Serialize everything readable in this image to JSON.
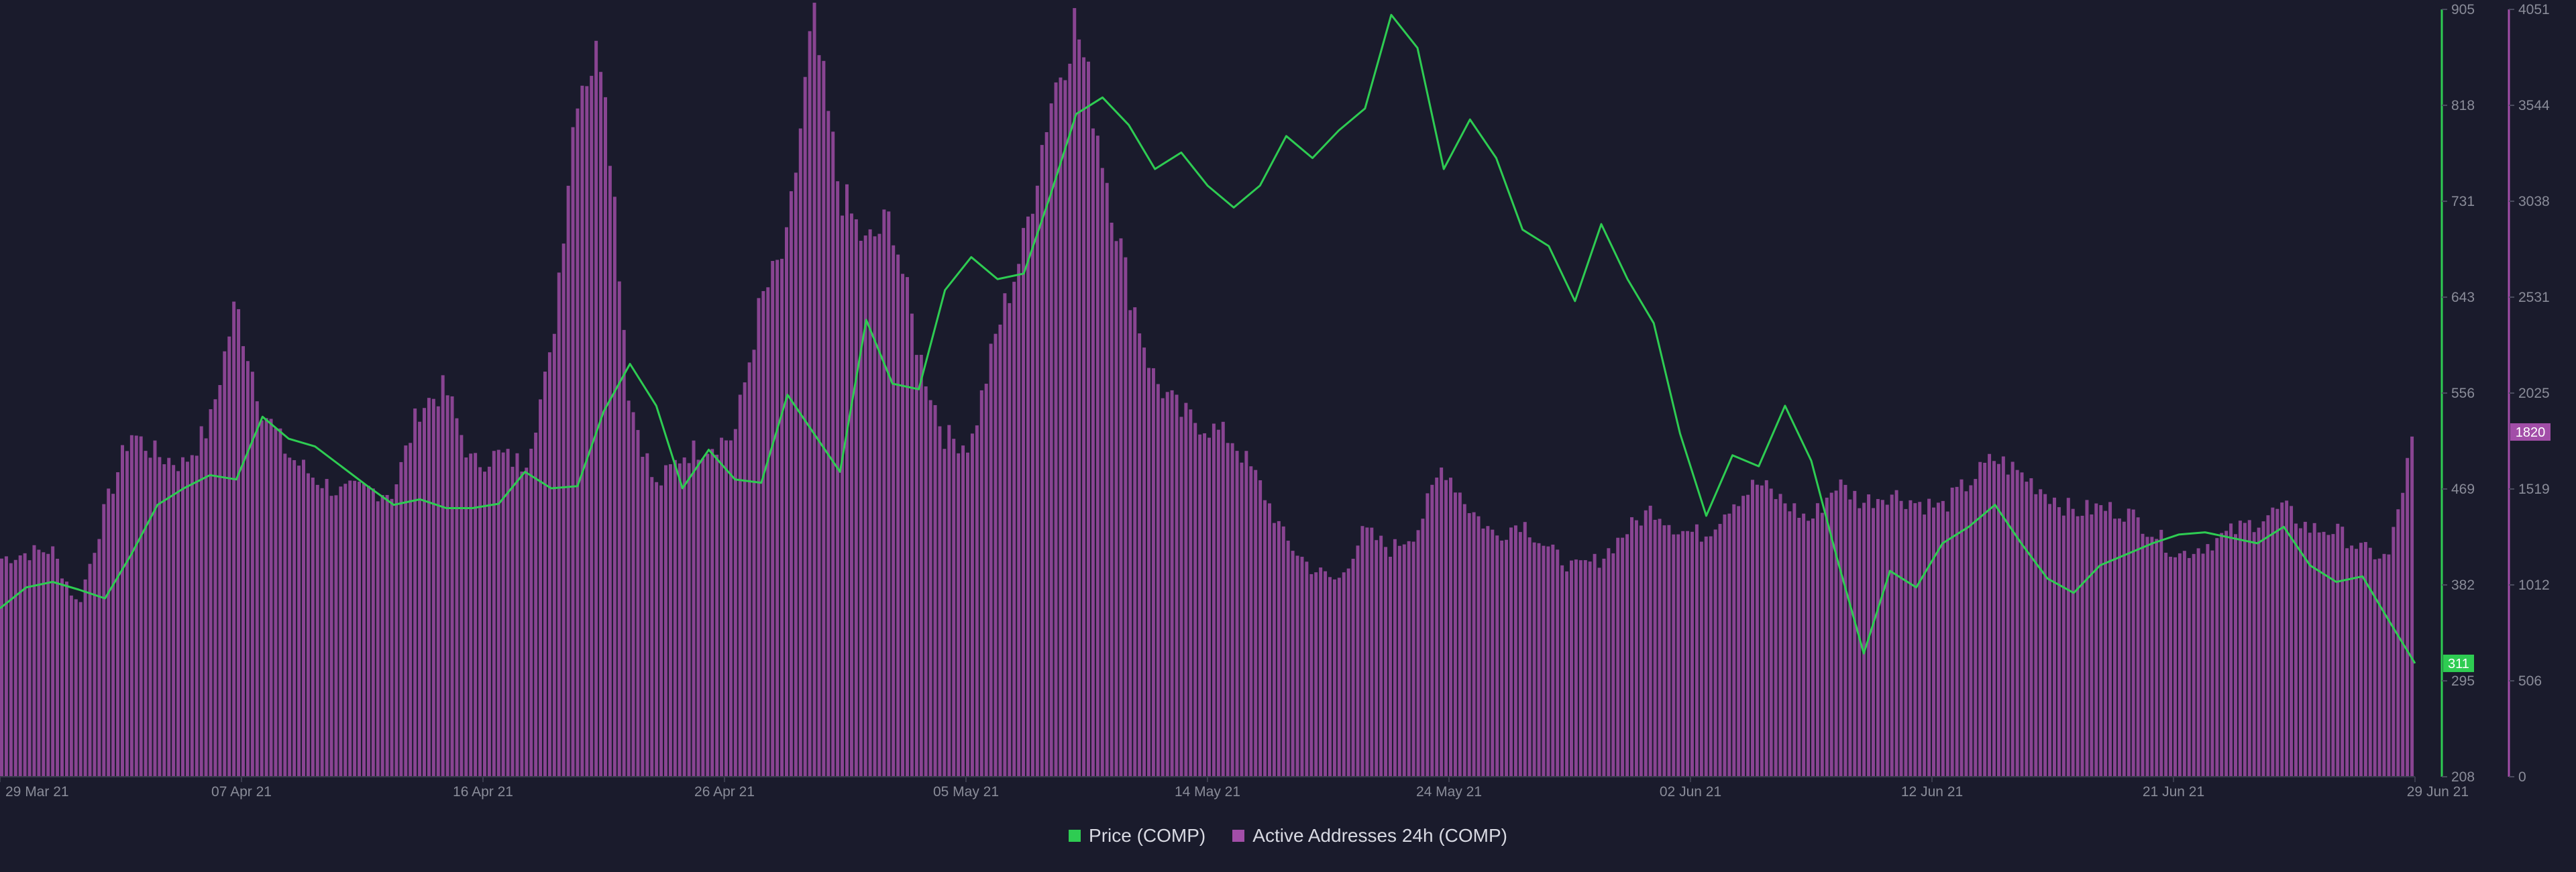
{
  "chart_data": {
    "type": "bar+line",
    "title": "",
    "x_ticks": [
      "29 Mar 21",
      "07 Apr 21",
      "16 Apr 21",
      "26 Apr 21",
      "05 May 21",
      "14 May 21",
      "24 May 21",
      "02 Jun 21",
      "12 Jun 21",
      "21 Jun 21",
      "29 Jun 21"
    ],
    "x_range": [
      "2021-03-29",
      "2021-06-29"
    ],
    "y_price": {
      "ticks": [
        "905",
        "818",
        "731",
        "643",
        "556",
        "469",
        "382",
        "295",
        "208"
      ],
      "range": [
        208,
        905
      ],
      "color": "#2ecc52"
    },
    "y_addresses": {
      "ticks": [
        "4051",
        "3544",
        "3038",
        "2531",
        "2025",
        "1519",
        "1012",
        "506",
        "0"
      ],
      "range": [
        0,
        4051
      ],
      "color": "#a24ea8"
    },
    "last_values": {
      "price": "311",
      "addresses": "1820"
    },
    "series": [
      {
        "name": "Price (COMP)",
        "type": "line",
        "color": "#2ecc52",
        "points": [
          [
            "2021-03-29",
            361
          ],
          [
            "2021-03-30",
            380
          ],
          [
            "2021-03-31",
            385
          ],
          [
            "2021-04-01",
            378
          ],
          [
            "2021-04-02",
            370
          ],
          [
            "2021-04-03",
            410
          ],
          [
            "2021-04-04",
            455
          ],
          [
            "2021-04-05",
            470
          ],
          [
            "2021-04-06",
            482
          ],
          [
            "2021-04-07",
            478
          ],
          [
            "2021-04-08",
            535
          ],
          [
            "2021-04-09",
            515
          ],
          [
            "2021-04-10",
            508
          ],
          [
            "2021-04-11",
            490
          ],
          [
            "2021-04-12",
            472
          ],
          [
            "2021-04-13",
            455
          ],
          [
            "2021-04-14",
            460
          ],
          [
            "2021-04-15",
            452
          ],
          [
            "2021-04-16",
            452
          ],
          [
            "2021-04-17",
            456
          ],
          [
            "2021-04-18",
            485
          ],
          [
            "2021-04-19",
            470
          ],
          [
            "2021-04-20",
            472
          ],
          [
            "2021-04-21",
            540
          ],
          [
            "2021-04-22",
            583
          ],
          [
            "2021-04-23",
            545
          ],
          [
            "2021-04-24",
            470
          ],
          [
            "2021-04-25",
            505
          ],
          [
            "2021-04-26",
            478
          ],
          [
            "2021-04-27",
            475
          ],
          [
            "2021-04-28",
            555
          ],
          [
            "2021-04-29",
            520
          ],
          [
            "2021-04-30",
            485
          ],
          [
            "2021-05-01",
            623
          ],
          [
            "2021-05-02",
            565
          ],
          [
            "2021-05-03",
            560
          ],
          [
            "2021-05-04",
            650
          ],
          [
            "2021-05-05",
            680
          ],
          [
            "2021-05-06",
            660
          ],
          [
            "2021-05-07",
            665
          ],
          [
            "2021-05-08",
            735
          ],
          [
            "2021-05-09",
            810
          ],
          [
            "2021-05-10",
            825
          ],
          [
            "2021-05-11",
            800
          ],
          [
            "2021-05-12",
            760
          ],
          [
            "2021-05-13",
            775
          ],
          [
            "2021-05-14",
            745
          ],
          [
            "2021-05-15",
            725
          ],
          [
            "2021-05-16",
            745
          ],
          [
            "2021-05-17",
            790
          ],
          [
            "2021-05-18",
            770
          ],
          [
            "2021-05-19",
            795
          ],
          [
            "2021-05-20",
            815
          ],
          [
            "2021-05-21",
            900
          ],
          [
            "2021-05-22",
            870
          ],
          [
            "2021-05-23",
            760
          ],
          [
            "2021-05-24",
            805
          ],
          [
            "2021-05-25",
            770
          ],
          [
            "2021-05-26",
            705
          ],
          [
            "2021-05-27",
            690
          ],
          [
            "2021-05-28",
            640
          ],
          [
            "2021-05-29",
            710
          ],
          [
            "2021-05-30",
            660
          ],
          [
            "2021-05-31",
            620
          ],
          [
            "2021-06-01",
            520
          ],
          [
            "2021-06-02",
            445
          ],
          [
            "2021-06-03",
            500
          ],
          [
            "2021-06-04",
            490
          ],
          [
            "2021-06-05",
            545
          ],
          [
            "2021-06-06",
            495
          ],
          [
            "2021-06-07",
            405
          ],
          [
            "2021-06-08",
            320
          ],
          [
            "2021-06-09",
            395
          ],
          [
            "2021-06-10",
            380
          ],
          [
            "2021-06-11",
            420
          ],
          [
            "2021-06-12",
            435
          ],
          [
            "2021-06-13",
            455
          ],
          [
            "2021-06-14",
            420
          ],
          [
            "2021-06-15",
            388
          ],
          [
            "2021-06-16",
            375
          ],
          [
            "2021-06-17",
            400
          ],
          [
            "2021-06-18",
            410
          ],
          [
            "2021-06-19",
            420
          ],
          [
            "2021-06-20",
            428
          ],
          [
            "2021-06-21",
            430
          ],
          [
            "2021-06-22",
            425
          ],
          [
            "2021-06-23",
            420
          ],
          [
            "2021-06-24",
            435
          ],
          [
            "2021-06-25",
            400
          ],
          [
            "2021-06-26",
            385
          ],
          [
            "2021-06-27",
            390
          ],
          [
            "2021-06-28",
            350
          ],
          [
            "2021-06-29",
            311
          ]
        ]
      },
      {
        "name": "Active Addresses 24h (COMP)",
        "type": "bar",
        "color": "#a24ea8",
        "points": [
          [
            "2021-03-29",
            1150
          ],
          [
            "2021-03-30",
            1180
          ],
          [
            "2021-03-31",
            1200
          ],
          [
            "2021-04-01",
            900
          ],
          [
            "2021-04-02",
            1400
          ],
          [
            "2021-04-03",
            1820
          ],
          [
            "2021-04-04",
            1700
          ],
          [
            "2021-04-05",
            1650
          ],
          [
            "2021-04-06",
            1850
          ],
          [
            "2021-04-07",
            2500
          ],
          [
            "2021-04-08",
            1950
          ],
          [
            "2021-04-09",
            1700
          ],
          [
            "2021-04-10",
            1580
          ],
          [
            "2021-04-11",
            1500
          ],
          [
            "2021-04-12",
            1520
          ],
          [
            "2021-04-13",
            1500
          ],
          [
            "2021-04-14",
            1950
          ],
          [
            "2021-04-15",
            2050
          ],
          [
            "2021-04-16",
            1650
          ],
          [
            "2021-04-17",
            1700
          ],
          [
            "2021-04-18",
            1650
          ],
          [
            "2021-04-19",
            2200
          ],
          [
            "2021-04-20",
            3650
          ],
          [
            "2021-04-21",
            3850
          ],
          [
            "2021-04-22",
            2000
          ],
          [
            "2021-04-23",
            1520
          ],
          [
            "2021-04-24",
            1700
          ],
          [
            "2021-04-25",
            1750
          ],
          [
            "2021-04-26",
            1800
          ],
          [
            "2021-04-27",
            2500
          ],
          [
            "2021-04-28",
            2800
          ],
          [
            "2021-04-29",
            4000
          ],
          [
            "2021-04-30",
            3100
          ],
          [
            "2021-05-01",
            2800
          ],
          [
            "2021-05-02",
            2950
          ],
          [
            "2021-05-03",
            2250
          ],
          [
            "2021-05-04",
            1800
          ],
          [
            "2021-05-05",
            1750
          ],
          [
            "2021-05-06",
            2350
          ],
          [
            "2021-05-07",
            2800
          ],
          [
            "2021-05-08",
            3550
          ],
          [
            "2021-05-09",
            4000
          ],
          [
            "2021-05-10",
            3300
          ],
          [
            "2021-05-11",
            2600
          ],
          [
            "2021-05-12",
            2100
          ],
          [
            "2021-05-13",
            1920
          ],
          [
            "2021-05-14",
            1850
          ],
          [
            "2021-05-15",
            1780
          ],
          [
            "2021-05-16",
            1550
          ],
          [
            "2021-05-17",
            1250
          ],
          [
            "2021-05-18",
            1100
          ],
          [
            "2021-05-19",
            1030
          ],
          [
            "2021-05-20",
            1300
          ],
          [
            "2021-05-21",
            1200
          ],
          [
            "2021-05-22",
            1300
          ],
          [
            "2021-05-23",
            1650
          ],
          [
            "2021-05-24",
            1420
          ],
          [
            "2021-05-25",
            1270
          ],
          [
            "2021-05-26",
            1350
          ],
          [
            "2021-05-27",
            1200
          ],
          [
            "2021-05-28",
            1100
          ],
          [
            "2021-05-29",
            1150
          ],
          [
            "2021-05-30",
            1300
          ],
          [
            "2021-05-31",
            1420
          ],
          [
            "2021-06-01",
            1300
          ],
          [
            "2021-06-02",
            1280
          ],
          [
            "2021-06-03",
            1450
          ],
          [
            "2021-06-04",
            1550
          ],
          [
            "2021-06-05",
            1450
          ],
          [
            "2021-06-06",
            1350
          ],
          [
            "2021-06-07",
            1550
          ],
          [
            "2021-06-08",
            1450
          ],
          [
            "2021-06-09",
            1500
          ],
          [
            "2021-06-10",
            1450
          ],
          [
            "2021-06-11",
            1420
          ],
          [
            "2021-06-12",
            1550
          ],
          [
            "2021-06-13",
            1680
          ],
          [
            "2021-06-14",
            1600
          ],
          [
            "2021-06-15",
            1500
          ],
          [
            "2021-06-16",
            1400
          ],
          [
            "2021-06-17",
            1420
          ],
          [
            "2021-06-18",
            1400
          ],
          [
            "2021-06-19",
            1300
          ],
          [
            "2021-06-20",
            1170
          ],
          [
            "2021-06-21",
            1220
          ],
          [
            "2021-06-22",
            1290
          ],
          [
            "2021-06-23",
            1350
          ],
          [
            "2021-06-24",
            1420
          ],
          [
            "2021-06-25",
            1310
          ],
          [
            "2021-06-26",
            1300
          ],
          [
            "2021-06-27",
            1200
          ],
          [
            "2021-06-28",
            1150
          ],
          [
            "2021-06-29",
            1820
          ]
        ]
      }
    ]
  },
  "legend": [
    {
      "label": "Price (COMP)",
      "color": "#2ecc52"
    },
    {
      "label": "Active Addresses 24h (COMP)",
      "color": "#a24ea8"
    }
  ]
}
